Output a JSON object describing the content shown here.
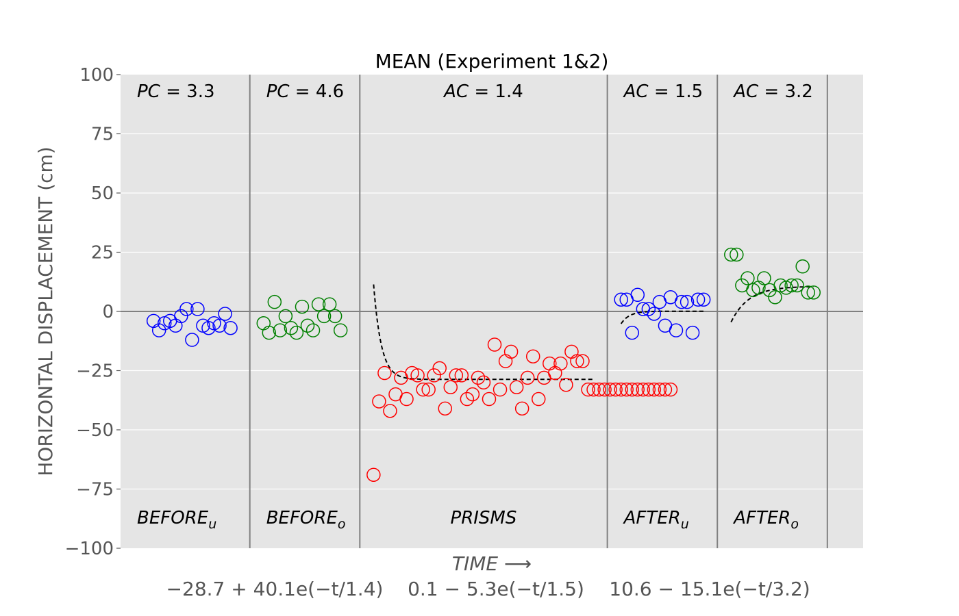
{
  "chart_data": {
    "type": "scatter",
    "title": "MEAN (Experiment 1&2)",
    "ylabel": "HORIZONTAL DISPLACEMENT (cm)",
    "xlabel": "TIME ⟶",
    "ylim": [
      -100,
      100
    ],
    "yticks": [
      100,
      75,
      50,
      25,
      0,
      -25,
      -50,
      -75,
      -100
    ],
    "ytick_labels": [
      "100",
      "75",
      "50",
      "25",
      "0",
      "−25",
      "−50",
      "−75",
      "−100"
    ],
    "grid": true,
    "x_range": [
      0,
      135
    ],
    "dividers": [
      23.5,
      43.5,
      88.5,
      108.5,
      128.5
    ],
    "formulas": [
      "−28.7 + 40.1e(−t/1.4)",
      "0.1 − 5.3e(−t/1.5)",
      "10.6 − 15.1e(−t/3.2)"
    ],
    "phases": [
      {
        "label": "BEFORE",
        "sub": "u",
        "metric": "PC",
        "value": "3.3"
      },
      {
        "label": "BEFORE",
        "sub": "o",
        "metric": "PC",
        "value": "4.6"
      },
      {
        "label": "PRISMS",
        "sub": "",
        "metric": "AC",
        "value": "1.4"
      },
      {
        "label": "AFTER",
        "sub": "u",
        "metric": "AC",
        "value": "1.5"
      },
      {
        "label": "AFTER",
        "sub": "o",
        "metric": "AC",
        "value": "3.2"
      }
    ],
    "series": [
      {
        "color": "#0000ff",
        "x": [
          6,
          7,
          8,
          9,
          10,
          11,
          12,
          13,
          14,
          15,
          16,
          17,
          18,
          19,
          20
        ],
        "y": [
          -4,
          -8,
          -5,
          -4,
          -6,
          -2,
          1,
          -12,
          1,
          -6,
          -7,
          -5,
          -6,
          -1,
          -7
        ]
      },
      {
        "color": "#008000",
        "x": [
          26,
          27,
          28,
          29,
          30,
          31,
          32,
          33,
          34,
          35,
          36,
          37,
          38,
          39,
          40
        ],
        "y": [
          -5,
          -9,
          4,
          -8,
          -2,
          -7,
          -9,
          2,
          -6,
          -8,
          3,
          -2,
          3,
          -2,
          -8
        ]
      },
      {
        "color": "#ff0000",
        "x": [
          46,
          47,
          48,
          49,
          50,
          51,
          52,
          53,
          54,
          55,
          56,
          57,
          58,
          59,
          60,
          61,
          62,
          63,
          64,
          65,
          66,
          67,
          68,
          69,
          70,
          71,
          72,
          73,
          74,
          75,
          76,
          77,
          78,
          79,
          80,
          81,
          82,
          83,
          84,
          85,
          86,
          87,
          88,
          89,
          90,
          91,
          92,
          93,
          94,
          95,
          96,
          97,
          98,
          99,
          100
        ],
        "y": [
          -69,
          -38,
          -26,
          -42,
          -35,
          -28,
          -37,
          -26,
          -27,
          -33,
          -33,
          -27,
          -24,
          -41,
          -32,
          -27,
          -27,
          -37,
          -35,
          -28,
          -30,
          -37,
          -14,
          -33,
          -21,
          -17,
          -32,
          -41,
          -28,
          -19,
          -37,
          -28,
          -22,
          -26,
          -22,
          -31,
          -17,
          -21,
          -21,
          -33,
          -33,
          -33,
          -33,
          -33,
          -33,
          -33,
          -33,
          -33,
          -33,
          -33,
          -33,
          -33,
          -33,
          -33,
          -33
        ]
      },
      {
        "color": "#0000ff",
        "x": [
          91,
          92,
          93,
          94,
          95,
          96,
          97,
          98,
          99,
          100,
          101,
          102,
          103,
          104,
          105,
          106
        ],
        "y": [
          5,
          5,
          -9,
          7,
          1,
          1,
          -1,
          4,
          -6,
          6,
          -8,
          4,
          4,
          -9,
          5,
          5
        ]
      },
      {
        "color": "#008000",
        "x": [
          111,
          112,
          113,
          114,
          115,
          116,
          117,
          118,
          119,
          120,
          121,
          122,
          123,
          124,
          125,
          126
        ],
        "y": [
          24,
          24,
          11,
          14,
          9,
          10,
          14,
          9,
          6,
          11,
          10,
          11,
          11,
          19,
          8,
          8
        ]
      }
    ],
    "fits": [
      {
        "x_start": 46,
        "x_end": 86,
        "a": -28.7,
        "b": 40.1,
        "tau": 1.4
      },
      {
        "x_start": 91,
        "x_end": 106,
        "a": 0.1,
        "b": -5.3,
        "tau": 1.5
      },
      {
        "x_start": 111,
        "x_end": 126,
        "a": 10.6,
        "b": -15.1,
        "tau": 3.2
      }
    ]
  }
}
